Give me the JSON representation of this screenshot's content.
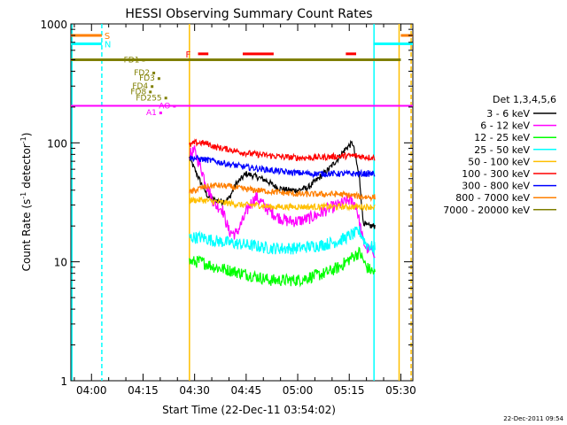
{
  "chart_data": {
    "type": "line",
    "title": "HESSI Observing Summary Count Rates",
    "xlabel": "Start Time (22-Dec-11 03:54:02)",
    "ylabel_main": "Count Rate (s",
    "ylabel_sup1": "-1",
    "ylabel_mid": " detector",
    "ylabel_sup2": "-1",
    "ylabel_end": ")",
    "y_scale": "log",
    "ylim": [
      1,
      1000
    ],
    "xlim_minutes": [
      234.0,
      333.5
    ],
    "x_ticks": [
      {
        "min": 240,
        "label": "04:00"
      },
      {
        "min": 255,
        "label": "04:15"
      },
      {
        "min": 270,
        "label": "04:30"
      },
      {
        "min": 285,
        "label": "04:45"
      },
      {
        "min": 300,
        "label": "05:00"
      },
      {
        "min": 315,
        "label": "05:15"
      },
      {
        "min": 330,
        "label": "05:30"
      }
    ],
    "y_ticks": [
      {
        "v": 1,
        "label": "1"
      },
      {
        "v": 10,
        "label": "10"
      },
      {
        "v": 100,
        "label": "100"
      },
      {
        "v": 1000,
        "label": "1000"
      }
    ],
    "legend": {
      "title": "Det 1,3,4,5,6",
      "placement": "right"
    },
    "data_start_min": 268.5,
    "data_end_min": 322.5,
    "series": [
      {
        "name": "3 - 6 keV",
        "color": "#000000",
        "x": [
          268.5,
          270,
          272,
          274,
          276,
          278,
          280,
          282,
          285,
          288,
          291,
          294,
          297,
          300,
          303,
          306,
          309,
          312,
          314,
          316,
          318,
          319,
          320,
          322.5
        ],
        "y": [
          75,
          60,
          45,
          35,
          33,
          32,
          34,
          45,
          55,
          52,
          48,
          42,
          40,
          40,
          42,
          50,
          60,
          75,
          90,
          100,
          50,
          22,
          20,
          20
        ]
      },
      {
        "name": "6 - 12 keV",
        "color": "#ff00ff",
        "x": [
          268.5,
          270,
          272,
          274,
          276,
          278,
          280,
          282,
          284,
          286,
          288,
          291,
          294,
          297,
          300,
          303,
          306,
          309,
          312,
          315,
          317,
          319,
          320,
          322.5
        ],
        "y": [
          80,
          85,
          60,
          40,
          30,
          28,
          18,
          17,
          22,
          30,
          35,
          28,
          24,
          22,
          22,
          23,
          25,
          28,
          30,
          33,
          30,
          15,
          13,
          12
        ]
      },
      {
        "name": "12 - 25 keV",
        "color": "#00ff00",
        "x": [
          268.5,
          272,
          276,
          280,
          284,
          288,
          292,
          296,
          300,
          304,
          308,
          312,
          316,
          318,
          320,
          322.5
        ],
        "y": [
          10,
          10,
          9,
          8.5,
          8,
          7.5,
          7,
          7,
          7,
          7.5,
          8,
          9,
          11,
          12,
          9,
          8
        ]
      },
      {
        "name": "25 - 50 keV",
        "color": "#00ffff",
        "x": [
          268.5,
          272,
          276,
          280,
          284,
          288,
          292,
          296,
          300,
          304,
          308,
          312,
          316,
          318,
          320,
          322.5
        ],
        "y": [
          16,
          16,
          15,
          14.5,
          14,
          13.5,
          13,
          13,
          13,
          13.5,
          14,
          15,
          17,
          18,
          14,
          13
        ]
      },
      {
        "name": "50 - 100 keV",
        "color": "#ffbf00",
        "x": [
          268.5,
          272,
          276,
          280,
          284,
          288,
          292,
          296,
          300,
          304,
          308,
          312,
          316,
          320,
          322.5
        ],
        "y": [
          33,
          33,
          32,
          31,
          30,
          30,
          29,
          29,
          29,
          29,
          29,
          29,
          29,
          29,
          29
        ]
      },
      {
        "name": "100 - 300 keV",
        "color": "#ff0000",
        "x": [
          268.5,
          270,
          272,
          274,
          276,
          280,
          284,
          288,
          292,
          296,
          300,
          304,
          308,
          312,
          316,
          320,
          322.5
        ],
        "y": [
          95,
          100,
          100,
          98,
          92,
          88,
          83,
          80,
          78,
          76,
          75,
          75,
          76,
          77,
          78,
          76,
          75
        ]
      },
      {
        "name": "300 - 800 keV",
        "color": "#0000ff",
        "x": [
          268.5,
          272,
          276,
          280,
          284,
          288,
          292,
          296,
          300,
          304,
          308,
          312,
          316,
          320,
          322.5
        ],
        "y": [
          75,
          73,
          70,
          66,
          63,
          61,
          59,
          57,
          56,
          55,
          55,
          55,
          55,
          55,
          55
        ]
      },
      {
        "name": "800 - 7000 keV",
        "color": "#ff7f00",
        "x": [
          268.5,
          272,
          276,
          280,
          284,
          288,
          292,
          296,
          300,
          304,
          308,
          312,
          316,
          320,
          322.5
        ],
        "y": [
          38,
          42,
          44,
          43,
          41,
          40,
          39,
          38,
          37,
          37,
          37,
          37,
          36,
          35,
          35
        ]
      },
      {
        "name": "7000 - 20000 keV",
        "color": "#7f7f00",
        "x": [
          234.0,
          330.0
        ],
        "y": [
          500,
          500
        ]
      }
    ],
    "flags": [
      {
        "label": "S",
        "color": "#ff7f00",
        "y": 800,
        "segments": [
          [
            234.0,
            243.0
          ],
          [
            330.0,
            333.5
          ]
        ]
      },
      {
        "label": "N",
        "color": "#00ffff",
        "y": 680,
        "segments": [
          [
            234.0,
            243.0
          ],
          [
            322.0,
            333.5
          ]
        ]
      },
      {
        "label": "F",
        "color": "#ff0000",
        "y": 560,
        "segments": [
          [
            271.0,
            274.0
          ],
          [
            284.0,
            293.0
          ],
          [
            314.0,
            317.0
          ]
        ]
      },
      {
        "label": "FD1",
        "color": "#7f7f00",
        "y": 500,
        "mark_x": 255.0
      },
      {
        "label": "FD2",
        "color": "#7f7f00",
        "y": 390,
        "mark_x": 258.0
      },
      {
        "label": "FD3",
        "color": "#7f7f00",
        "y": 350,
        "mark_x": 259.5
      },
      {
        "label": "FD4",
        "color": "#7f7f00",
        "y": 300,
        "mark_x": 257.5
      },
      {
        "label": "FD8",
        "color": "#7f7f00",
        "y": 270,
        "mark_x": 257.0
      },
      {
        "label": "FD255",
        "color": "#7f7f00",
        "y": 240,
        "mark_x": 261.5
      },
      {
        "label": "AO",
        "color": "#ff00ff",
        "y": 205,
        "mark_x": 264.0
      },
      {
        "label": "A1",
        "color": "#ff00ff",
        "y": 180,
        "mark_x": 260.0
      }
    ],
    "attenuator_level": 205,
    "vlines": [
      {
        "x": 234.3,
        "color": "#00ffff",
        "dash": false
      },
      {
        "x": 243.0,
        "color": "#00ffff",
        "dash": true
      },
      {
        "x": 268.5,
        "color": "#ffbf00",
        "dash": false
      },
      {
        "x": 322.2,
        "color": "#00ffff",
        "dash": false
      },
      {
        "x": 329.5,
        "color": "#ffbf00",
        "dash": false
      },
      {
        "x": 333.0,
        "color": "#ffbf00",
        "dash": true
      }
    ]
  },
  "footer": {
    "timestamp": "22-Dec-2011 09:54"
  }
}
